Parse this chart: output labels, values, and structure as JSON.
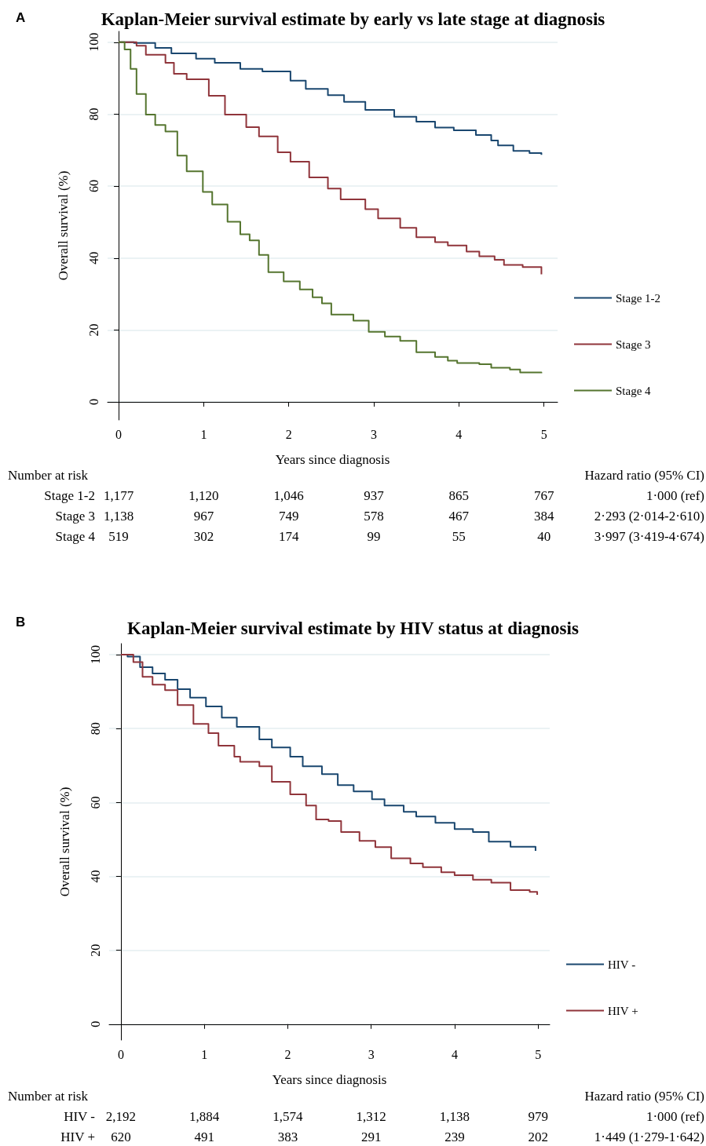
{
  "chart_data": [
    {
      "type": "step",
      "title": "Kaplan-Meier survival estimate by early vs late stage at diagnosis",
      "xlabel": "Years since diagnosis",
      "ylabel": "Overall survival (%)",
      "xlim": [
        -0.13,
        5.16
      ],
      "xticks": [
        0,
        1,
        2,
        3,
        4,
        5
      ],
      "ylim": [
        -5,
        103
      ],
      "yticks": [
        0,
        20,
        40,
        60,
        80,
        100
      ],
      "grid": "y",
      "legend": "right",
      "marker": "none",
      "line_style": "solid",
      "series": [
        {
          "name": "Stage 1-2",
          "color": "#1a476f",
          "x": [
            0,
            0.18,
            0.43,
            0.62,
            0.91,
            1.13,
            1.43,
            1.69,
            2.02,
            2.2,
            2.46,
            2.65,
            2.9,
            3.24,
            3.5,
            3.72,
            3.94,
            4.2,
            4.38,
            4.46,
            4.64,
            4.83,
            4.97
          ],
          "values": [
            100,
            99.8,
            98.4,
            96.9,
            95.4,
            94.3,
            92.6,
            91.9,
            89.3,
            87,
            85.3,
            83.4,
            81.2,
            79.3,
            77.9,
            76.3,
            75.5,
            74.2,
            72.7,
            71.3,
            69.8,
            69.2,
            68.7
          ]
        },
        {
          "name": "Stage 3",
          "color": "#90353b",
          "x": [
            0,
            0.21,
            0.32,
            0.55,
            0.65,
            0.8,
            1.06,
            1.25,
            1.5,
            1.65,
            1.87,
            2.02,
            2.24,
            2.46,
            2.61,
            2.9,
            3.05,
            3.31,
            3.5,
            3.72,
            3.87,
            4.09,
            4.24,
            4.42,
            4.53,
            4.75,
            4.97
          ],
          "values": [
            100,
            99,
            96.5,
            94.3,
            91.2,
            89.7,
            85.1,
            79.9,
            76.4,
            73.8,
            69.4,
            66.8,
            62.4,
            59.3,
            56.3,
            53.6,
            51,
            48.4,
            45.8,
            44.4,
            43.5,
            41.8,
            40.5,
            39.5,
            38.1,
            37.5,
            35.5
          ]
        },
        {
          "name": "Stage 4",
          "color": "#55752f",
          "x": [
            0,
            0.07,
            0.14,
            0.21,
            0.32,
            0.43,
            0.55,
            0.69,
            0.8,
            0.99,
            1.1,
            1.28,
            1.43,
            1.54,
            1.65,
            1.76,
            1.94,
            2.13,
            2.28,
            2.39,
            2.5,
            2.76,
            2.94,
            3.13,
            3.31,
            3.5,
            3.72,
            3.87,
            3.98,
            4.24,
            4.38,
            4.6,
            4.72,
            4.97
          ],
          "values": [
            100,
            98,
            92.6,
            85.6,
            79.9,
            77,
            75.2,
            68.5,
            64.1,
            58.4,
            54.9,
            50.1,
            46.6,
            44.9,
            40.9,
            36.1,
            33.5,
            31.3,
            29.1,
            27.4,
            24.3,
            22.6,
            19.5,
            18.2,
            17,
            13.8,
            12.5,
            11.5,
            10.8,
            10.5,
            9.5,
            9,
            8.2,
            8
          ]
        }
      ],
      "annotations": [
        "A",
        "Number at risk",
        "Hazard ratio (95% CI)",
        "Stage 1-2",
        "1,177",
        "1,120",
        "1,046",
        "937",
        "865",
        "767",
        "1·000 (ref)",
        "Stage 3",
        "1,138",
        "967",
        "749",
        "578",
        "467",
        "384",
        "2·293 (2·014-2·610)",
        "Stage 4",
        "519",
        "302",
        "174",
        "99",
        "55",
        "40",
        "3·997 (3·419-4·674)"
      ]
    },
    {
      "type": "step",
      "title": "Kaplan-Meier survival estimate by HIV status at diagnosis",
      "xlabel": "Years since diagnosis",
      "ylabel": "Overall survival (%)",
      "xlim": [
        -0.14,
        5.14
      ],
      "xticks": [
        0,
        1,
        2,
        3,
        4,
        5
      ],
      "ylim": [
        -4.3,
        103
      ],
      "yticks": [
        0,
        20,
        40,
        60,
        80,
        100
      ],
      "grid": "y",
      "legend": "right",
      "marker": "none",
      "line_style": "solid",
      "series": [
        {
          "name": "HIV -",
          "color": "#1a476f",
          "x": [
            0,
            0.08,
            0.23,
            0.38,
            0.53,
            0.68,
            0.83,
            1.02,
            1.21,
            1.39,
            1.66,
            1.81,
            2.03,
            2.18,
            2.41,
            2.6,
            2.79,
            3.01,
            3.16,
            3.39,
            3.54,
            3.77,
            4.0,
            4.22,
            4.41,
            4.67,
            4.97
          ],
          "values": [
            100,
            99.5,
            96.6,
            94.9,
            93.2,
            90.7,
            88.4,
            86,
            83,
            80.5,
            77.1,
            74.9,
            72.4,
            69.8,
            67.7,
            64.7,
            63,
            60.9,
            59.2,
            57.5,
            56.2,
            54.5,
            52.8,
            52,
            49.4,
            48,
            46.9
          ]
        },
        {
          "name": "HIV +",
          "color": "#90353b",
          "x": [
            0,
            0.06,
            0.15,
            0.26,
            0.38,
            0.53,
            0.68,
            0.87,
            1.05,
            1.17,
            1.36,
            1.43,
            1.66,
            1.81,
            2.03,
            2.22,
            2.34,
            2.49,
            2.64,
            2.86,
            3.05,
            3.24,
            3.47,
            3.62,
            3.84,
            4.0,
            4.22,
            4.44,
            4.67,
            4.9,
            4.99
          ],
          "values": [
            100,
            100,
            98,
            94,
            91.9,
            90.4,
            86.4,
            81.3,
            78.8,
            75.4,
            72.4,
            71,
            69.8,
            65.6,
            62.2,
            59.2,
            55.4,
            55,
            52,
            49.6,
            47.9,
            44.9,
            43.5,
            42.5,
            41.1,
            40.3,
            39.1,
            38.3,
            36.3,
            35.8,
            35
          ]
        }
      ],
      "annotations": [
        "B",
        "Number at risk",
        "Hazard ratio (95% CI)",
        "HIV -",
        "2,192",
        "1,884",
        "1,574",
        "1,312",
        "1,138",
        "979",
        "1·000 (ref)",
        "HIV +",
        "620",
        "491",
        "383",
        "291",
        "239",
        "202",
        "1·449 (1·279-1·642)"
      ]
    }
  ]
}
